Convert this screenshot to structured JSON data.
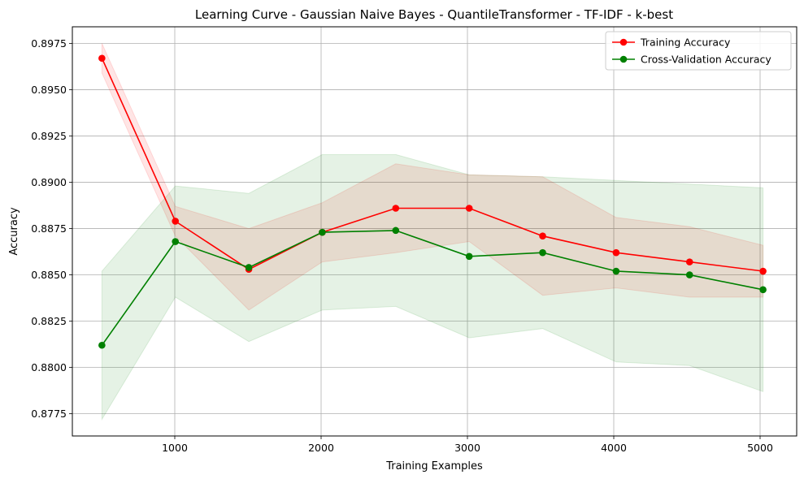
{
  "chart_data": {
    "type": "line",
    "title": "Learning Curve - Gaussian Naive Bayes - QuantileTransformer - TF-IDF - k-best",
    "xlabel": "Training Examples",
    "ylabel": "Accuracy",
    "xlim": [
      300,
      5250
    ],
    "ylim": [
      0.8763,
      0.8984
    ],
    "x_ticks": [
      1000,
      2000,
      3000,
      4000,
      5000
    ],
    "y_ticks": [
      0.8775,
      0.88,
      0.8825,
      0.885,
      0.8875,
      0.89,
      0.8925,
      0.895,
      0.8975
    ],
    "x_tick_labels": [
      "1000",
      "2000",
      "3000",
      "4000",
      "5000"
    ],
    "y_tick_labels": [
      "0.8775",
      "0.8800",
      "0.8825",
      "0.8850",
      "0.8875",
      "0.8900",
      "0.8925",
      "0.8950",
      "0.8975"
    ],
    "grid": true,
    "legend_position": "top-right",
    "x": [
      502,
      1004,
      1506,
      2008,
      2510,
      3012,
      3514,
      4016,
      4518,
      5020
    ],
    "series": [
      {
        "name": "Training Accuracy",
        "color": "#ff0000",
        "band_color": "#ff0000",
        "values": [
          0.8967,
          0.8879,
          0.8853,
          0.8873,
          0.8886,
          0.8886,
          0.8871,
          0.8862,
          0.8857,
          0.8852
        ],
        "std": [
          0.0008,
          0.0008,
          0.0022,
          0.0016,
          0.0024,
          0.0018,
          0.0032,
          0.0019,
          0.0019,
          0.0014
        ]
      },
      {
        "name": "Cross-Validation Accuracy",
        "color": "#008000",
        "band_color": "#008000",
        "values": [
          0.8812,
          0.8868,
          0.8854,
          0.8873,
          0.8874,
          0.886,
          0.8862,
          0.8852,
          0.885,
          0.8842
        ],
        "std": [
          0.004,
          0.003,
          0.004,
          0.0042,
          0.0041,
          0.0044,
          0.0041,
          0.0049,
          0.0049,
          0.0055
        ]
      }
    ]
  }
}
